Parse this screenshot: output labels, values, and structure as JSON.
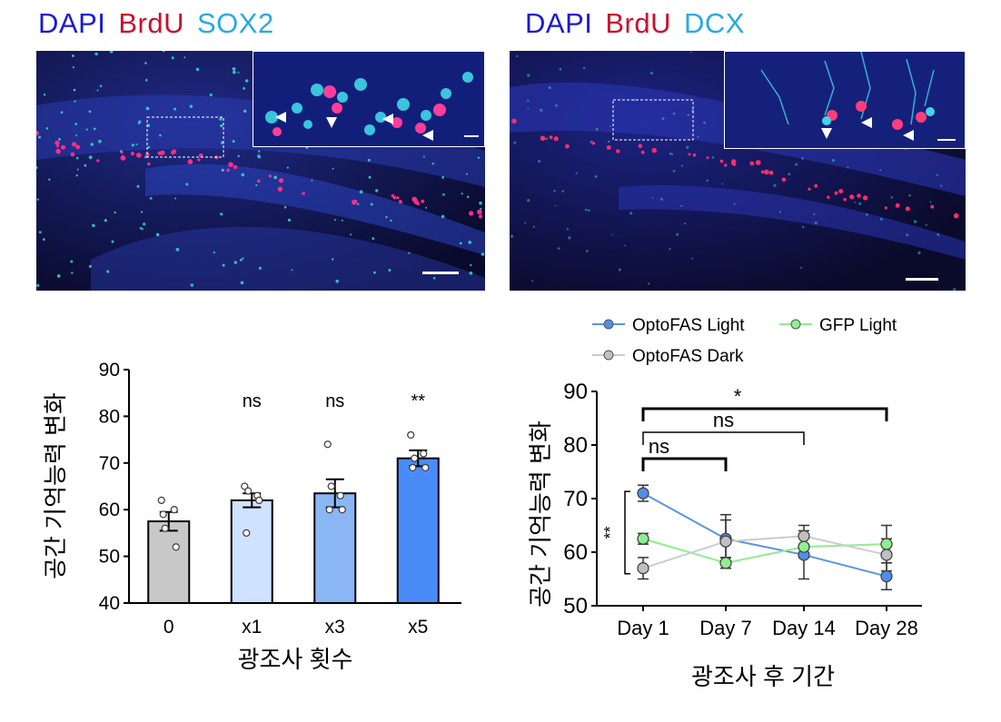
{
  "panels": {
    "left": {
      "stain_labels": [
        {
          "text": "DAPI",
          "color": "#1a1ad0"
        },
        {
          "text": "BrdU",
          "color": "#c8102e"
        },
        {
          "text": "SOX2",
          "color": "#29a9e0"
        }
      ]
    },
    "right": {
      "stain_labels": [
        {
          "text": "DAPI",
          "color": "#1a1ad0"
        },
        {
          "text": "BrdU",
          "color": "#c8102e"
        },
        {
          "text": "DCX",
          "color": "#29a9e0"
        }
      ]
    }
  },
  "chart_data": [
    {
      "type": "bar",
      "categories": [
        "0",
        "x1",
        "x3",
        "x5"
      ],
      "values": [
        57.5,
        62,
        63.5,
        71
      ],
      "errors": [
        2,
        1.5,
        3,
        1.7
      ],
      "points": [
        [
          62,
          60,
          56,
          52,
          59
        ],
        [
          65,
          63,
          64,
          62,
          55
        ],
        [
          74,
          63,
          65,
          60,
          60
        ],
        [
          76,
          72,
          71,
          69,
          69
        ]
      ],
      "bar_colors": [
        "#c8c8c8",
        "#cfe2ff",
        "#8ab6f5",
        "#4a8cf7"
      ],
      "significance": [
        "",
        "ns",
        "ns",
        "**"
      ],
      "xlabel": "광조사 횟수",
      "ylabel": "공간 기억능력 변화",
      "ylim": [
        40,
        90
      ],
      "yticks": [
        "40",
        "50",
        "60",
        "70",
        "80",
        "90"
      ]
    },
    {
      "type": "line",
      "categories": [
        "Day 1",
        "Day 7",
        "Day 14",
        "Day 28"
      ],
      "series": [
        {
          "name": "OptoFAS Light",
          "values": [
            71,
            62.5,
            59.5,
            55.5
          ],
          "errors": [
            1.5,
            3.5,
            4.5,
            2.5
          ],
          "color": "#3a7fe0",
          "line_color": "#5a93e8",
          "marker": "#4f8fe8"
        },
        {
          "name": "GFP Light",
          "values": [
            62.5,
            58,
            61,
            61.5
          ],
          "errors": [
            1,
            1,
            2,
            3.5
          ],
          "color": "#7fe07f",
          "line_color": "#90ec90",
          "marker": "#90ee90"
        },
        {
          "name": "OptoFAS Dark",
          "values": [
            57,
            62,
            63,
            59.5
          ],
          "errors": [
            2,
            5,
            2,
            3
          ],
          "color": "#aaaaaa",
          "line_color": "#cccccc",
          "marker": "#c0c0c0"
        }
      ],
      "brackets": [
        {
          "from": "Day 1",
          "to": "Day 28",
          "label": "*",
          "bold": true
        },
        {
          "from": "Day 1",
          "to": "Day 14",
          "label": "ns",
          "bold": false
        },
        {
          "from": "Day 1",
          "to": "Day 7",
          "label": "ns",
          "bold": true
        }
      ],
      "side_bracket_label": "**",
      "xlabel": "광조사 후 기간",
      "ylabel": "공간 기억능력 변화",
      "ylim": [
        50,
        90
      ],
      "yticks": [
        "50",
        "60",
        "70",
        "80",
        "90"
      ],
      "legend": "top"
    }
  ]
}
